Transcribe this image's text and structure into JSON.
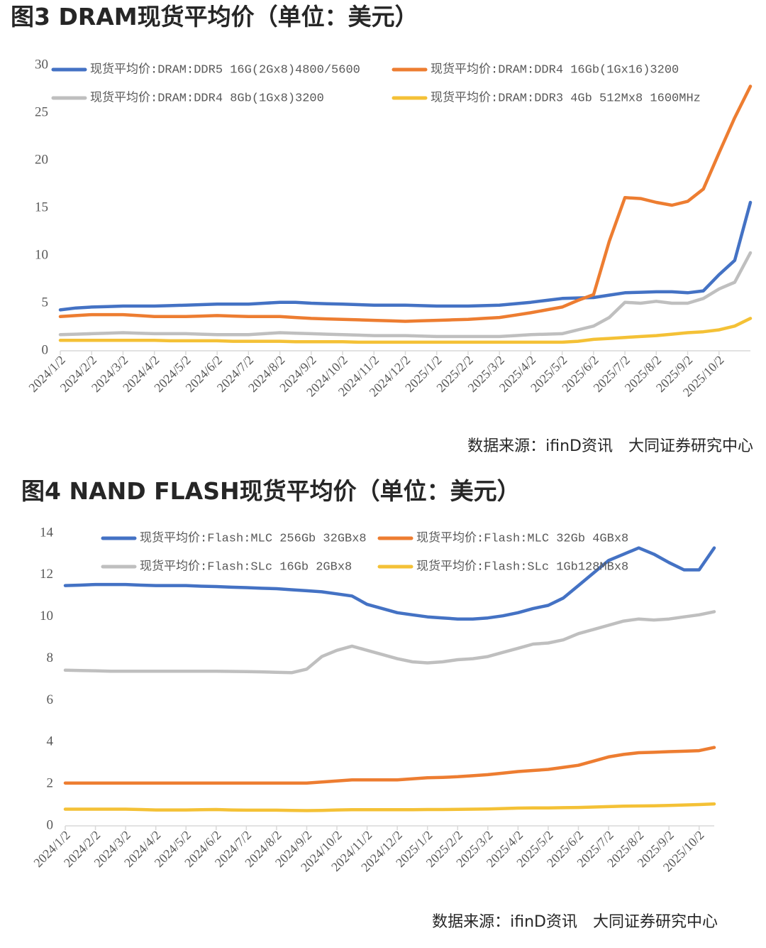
{
  "chart_data": [
    {
      "type": "line",
      "title": "图3  DRAM现货平均价（单位：美元）",
      "source": "数据来源：ifinD资讯　大同证券研究中心",
      "categories": [
        "2024/1/2",
        null,
        "2024/2/2",
        null,
        "2024/3/2",
        null,
        "2024/4/2",
        null,
        "2024/5/2",
        null,
        "2024/6/2",
        null,
        "2024/7/2",
        null,
        "2024/8/2",
        null,
        "2024/9/2",
        null,
        "2024/10/2",
        null,
        "2024/11/2",
        null,
        "2024/12/2",
        null,
        "2025/1/2",
        null,
        "2025/2/2",
        null,
        "2025/3/2",
        null,
        "2025/4/2",
        null,
        "2025/5/2",
        null,
        "2025/6/2",
        null,
        "2025/7/2",
        null,
        "2025/8/2",
        null,
        "2025/9/2",
        null,
        "2025/10/2",
        null,
        null
      ],
      "ylim": [
        0,
        30
      ],
      "yticks": [
        0,
        5,
        10,
        15,
        20,
        25,
        30
      ],
      "grid": false,
      "legend": "top",
      "series": [
        {
          "name": "现货平均价:DRAM:DDR5 16G(2Gx8)4800/5600",
          "color": "#4472c4",
          "values": [
            4.3,
            4.5,
            4.6,
            4.65,
            4.7,
            4.7,
            4.7,
            4.75,
            4.8,
            4.85,
            4.9,
            4.9,
            4.9,
            5.0,
            5.1,
            5.1,
            5.0,
            4.95,
            4.9,
            4.85,
            4.8,
            4.8,
            4.8,
            4.75,
            4.7,
            4.7,
            4.7,
            4.75,
            4.8,
            4.95,
            5.1,
            5.3,
            5.5,
            5.55,
            5.6,
            5.85,
            6.1,
            6.15,
            6.2,
            6.2,
            6.1,
            6.3,
            8.0,
            9.5,
            15.6
          ]
        },
        {
          "name": "现货平均价:DRAM:DDR4 16Gb(1Gx16)3200",
          "color": "#ed7d31",
          "values": [
            3.6,
            3.7,
            3.8,
            3.8,
            3.8,
            3.7,
            3.6,
            3.6,
            3.6,
            3.65,
            3.7,
            3.65,
            3.6,
            3.6,
            3.6,
            3.5,
            3.4,
            3.35,
            3.3,
            3.25,
            3.2,
            3.15,
            3.1,
            3.15,
            3.2,
            3.25,
            3.3,
            3.4,
            3.5,
            3.75,
            4.0,
            4.3,
            4.6,
            5.3,
            5.9,
            11.5,
            16.1,
            16.0,
            15.6,
            15.3,
            15.7,
            17.0,
            20.8,
            24.5,
            27.8
          ]
        },
        {
          "name": "现货平均价:DRAM:DDR4 8Gb(1Gx8)3200",
          "color": "#bfbfbf",
          "values": [
            1.7,
            1.75,
            1.8,
            1.85,
            1.9,
            1.85,
            1.8,
            1.8,
            1.8,
            1.75,
            1.7,
            1.7,
            1.7,
            1.8,
            1.9,
            1.85,
            1.8,
            1.75,
            1.7,
            1.65,
            1.6,
            1.6,
            1.6,
            1.55,
            1.5,
            1.5,
            1.5,
            1.5,
            1.5,
            1.6,
            1.7,
            1.75,
            1.8,
            2.2,
            2.6,
            3.5,
            5.1,
            5.0,
            5.2,
            5.0,
            5.0,
            5.5,
            6.5,
            7.2,
            10.3
          ]
        },
        {
          "name": "现货平均价:DRAM:DDR3 4Gb 512Mx8 1600MHz",
          "color": "#f4c136",
          "values": [
            1.1,
            1.1,
            1.1,
            1.1,
            1.1,
            1.1,
            1.1,
            1.05,
            1.05,
            1.05,
            1.05,
            1.0,
            1.0,
            1.0,
            1.0,
            0.95,
            0.95,
            0.95,
            0.95,
            0.9,
            0.9,
            0.9,
            0.9,
            0.9,
            0.9,
            0.9,
            0.9,
            0.9,
            0.9,
            0.9,
            0.9,
            0.9,
            0.9,
            1.0,
            1.2,
            1.3,
            1.4,
            1.5,
            1.6,
            1.75,
            1.9,
            2.0,
            2.2,
            2.6,
            3.4
          ]
        }
      ]
    },
    {
      "type": "line",
      "title": "图4  NAND FLASH现货平均价（单位：美元）",
      "source": "数据来源：ifinD资讯　大同证券研究中心",
      "categories": [
        "2024/1/2",
        null,
        "2024/2/2",
        null,
        "2024/3/2",
        null,
        "2024/4/2",
        null,
        "2024/5/2",
        null,
        "2024/6/2",
        null,
        "2024/7/2",
        null,
        "2024/8/2",
        null,
        "2024/9/2",
        null,
        "2024/10/2",
        null,
        "2024/11/2",
        null,
        "2024/12/2",
        null,
        "2025/1/2",
        null,
        "2025/2/2",
        null,
        "2025/3/2",
        null,
        "2025/4/2",
        null,
        "2025/5/2",
        null,
        "2025/6/2",
        null,
        "2025/7/2",
        null,
        "2025/8/2",
        null,
        "2025/9/2",
        null,
        "2025/10/2",
        null
      ],
      "ylim": [
        0,
        14
      ],
      "yticks": [
        0,
        2,
        4,
        6,
        8,
        10,
        12,
        14
      ],
      "grid": false,
      "legend": "top",
      "series": [
        {
          "name": "现货平均价:Flash:MLC 256Gb 32GBx8",
          "color": "#4472c4",
          "values": [
            11.5,
            11.52,
            11.55,
            11.55,
            11.55,
            11.52,
            11.5,
            11.5,
            11.5,
            11.47,
            11.45,
            11.42,
            11.4,
            11.37,
            11.35,
            11.3,
            11.25,
            11.2,
            11.1,
            11.0,
            10.6,
            10.4,
            10.2,
            10.1,
            10.0,
            9.95,
            9.9,
            9.9,
            9.95,
            10.05,
            10.2,
            10.4,
            10.55,
            10.9,
            11.5,
            12.1,
            12.7,
            13.0,
            13.3,
            13.0,
            12.6,
            12.25,
            12.25,
            13.3
          ]
        },
        {
          "name": "现货平均价:Flash:MLC 32Gb 4GBx8",
          "color": "#ed7d31",
          "values": [
            2.05,
            2.05,
            2.05,
            2.05,
            2.05,
            2.05,
            2.05,
            2.05,
            2.05,
            2.05,
            2.05,
            2.05,
            2.05,
            2.05,
            2.05,
            2.05,
            2.05,
            2.1,
            2.15,
            2.2,
            2.2,
            2.2,
            2.2,
            2.25,
            2.3,
            2.32,
            2.35,
            2.4,
            2.45,
            2.52,
            2.6,
            2.65,
            2.7,
            2.8,
            2.9,
            3.1,
            3.3,
            3.42,
            3.5,
            3.52,
            3.55,
            3.57,
            3.6,
            3.75
          ]
        },
        {
          "name": "现货平均价:Flash:SLc 16Gb 2GBx8",
          "color": "#bfbfbf",
          "values": [
            7.45,
            7.43,
            7.42,
            7.4,
            7.4,
            7.4,
            7.4,
            7.4,
            7.4,
            7.4,
            7.4,
            7.39,
            7.38,
            7.37,
            7.35,
            7.33,
            7.5,
            8.1,
            8.4,
            8.6,
            8.4,
            8.2,
            8.0,
            7.85,
            7.8,
            7.85,
            7.95,
            8.0,
            8.1,
            8.3,
            8.5,
            8.7,
            8.75,
            8.9,
            9.2,
            9.4,
            9.6,
            9.8,
            9.9,
            9.85,
            9.9,
            10.0,
            10.1,
            10.25
          ]
        },
        {
          "name": "现货平均价:Flash:SLc 1Gb128MBx8",
          "color": "#f4c136",
          "values": [
            0.8,
            0.8,
            0.8,
            0.8,
            0.8,
            0.78,
            0.76,
            0.76,
            0.76,
            0.77,
            0.78,
            0.76,
            0.75,
            0.75,
            0.75,
            0.74,
            0.73,
            0.74,
            0.76,
            0.77,
            0.77,
            0.77,
            0.77,
            0.77,
            0.78,
            0.78,
            0.79,
            0.8,
            0.81,
            0.83,
            0.85,
            0.86,
            0.86,
            0.87,
            0.88,
            0.9,
            0.92,
            0.94,
            0.95,
            0.96,
            0.98,
            1.0,
            1.02,
            1.05
          ]
        }
      ]
    }
  ]
}
